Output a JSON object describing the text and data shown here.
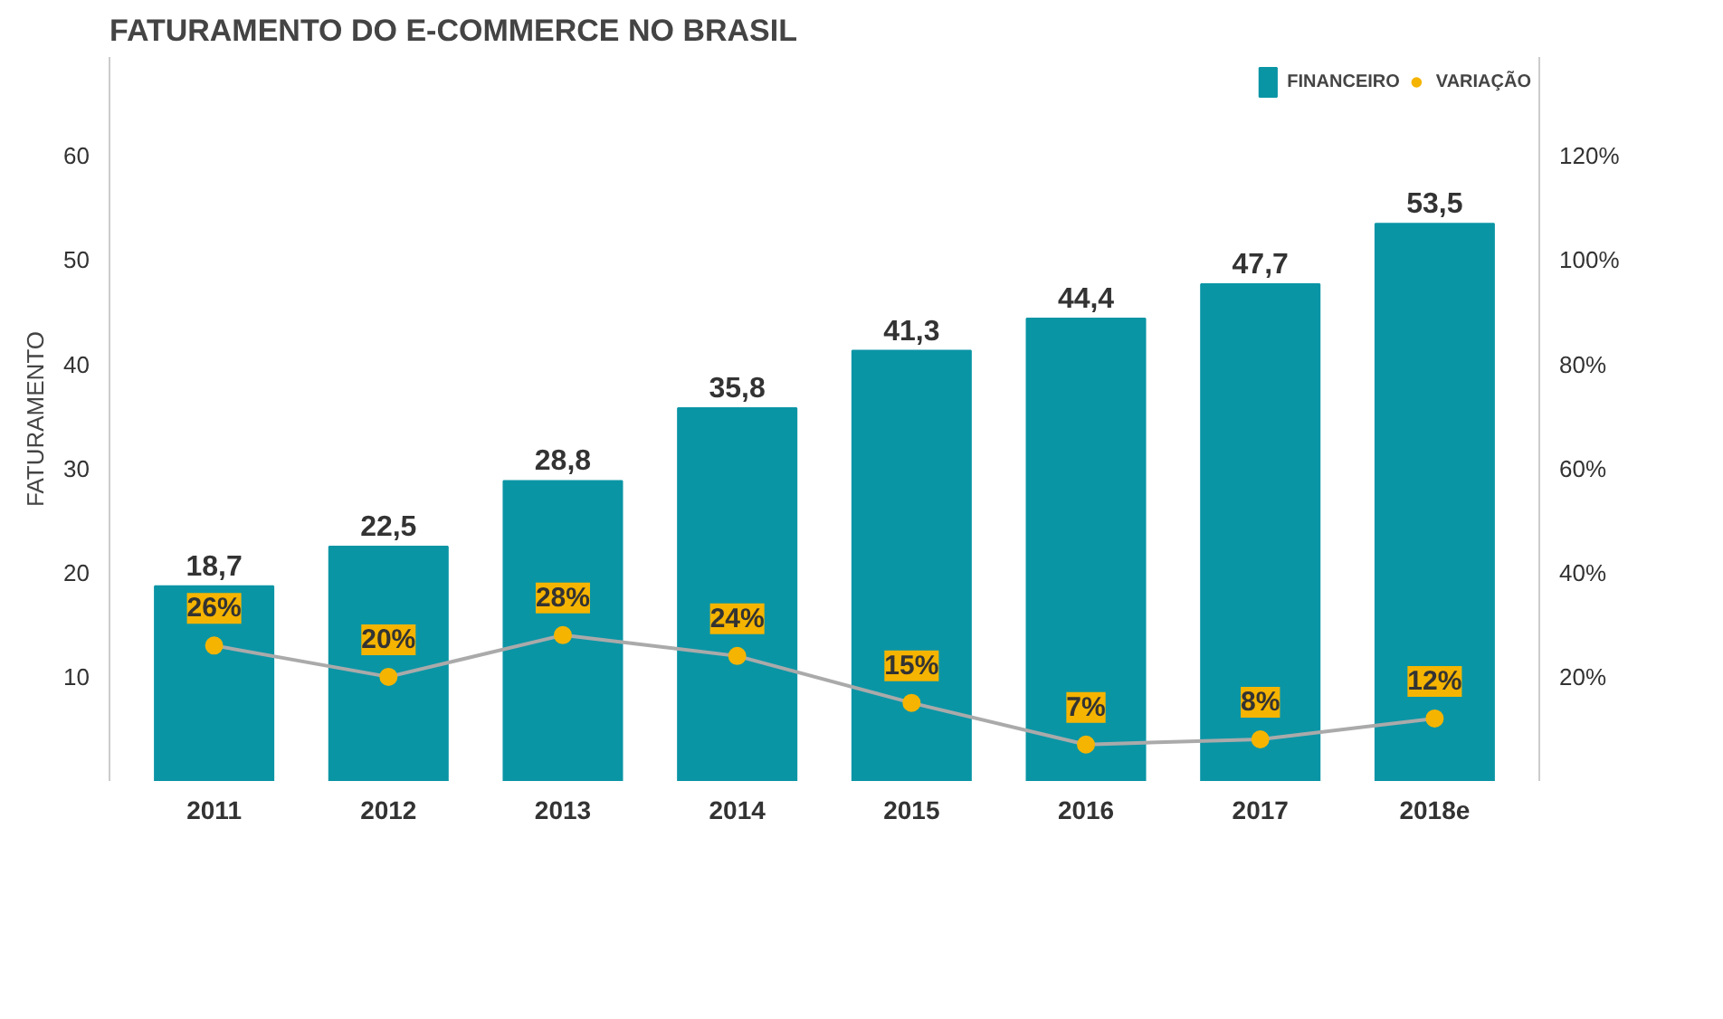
{
  "chart_data": {
    "type": "bar",
    "title": "FATURAMENTO DO E-COMMERCE NO BRASIL",
    "ylabel": "FATURAMENTO",
    "categories": [
      "2011",
      "2012",
      "2013",
      "2014",
      "2015",
      "2016",
      "2017",
      "2018e"
    ],
    "series": [
      {
        "name": "FINANCEIRO",
        "color": "#0a95a5",
        "values": [
          18.7,
          22.5,
          28.8,
          35.8,
          41.3,
          44.4,
          47.7,
          53.5
        ],
        "value_labels": [
          "18,7",
          "22,5",
          "28,8",
          "35,8",
          "41,3",
          "44,4",
          "47,7",
          "53,5"
        ]
      },
      {
        "name": "VARIAÇÃO",
        "type": "line",
        "axis": "y2",
        "marker": "circle",
        "color": "#f5b400",
        "values": [
          26,
          20,
          28,
          24,
          15,
          7,
          8,
          12
        ],
        "value_labels": [
          "26%",
          "20%",
          "28%",
          "24%",
          "15%",
          "7%",
          "8%",
          "12%"
        ]
      }
    ],
    "ylim": [
      0,
      69.5
    ],
    "yticks": [
      10,
      20,
      30,
      40,
      50,
      60
    ],
    "y2lim": [
      0,
      139
    ],
    "y2ticks": [
      {
        "value": 20,
        "label": "20%"
      },
      {
        "value": 40,
        "label": "40%"
      },
      {
        "value": 60,
        "label": "60%"
      },
      {
        "value": 80,
        "label": "80%"
      },
      {
        "value": 100,
        "label": "100%"
      },
      {
        "value": 120,
        "label": "120%"
      }
    ],
    "grid": false,
    "legend": "top right"
  }
}
